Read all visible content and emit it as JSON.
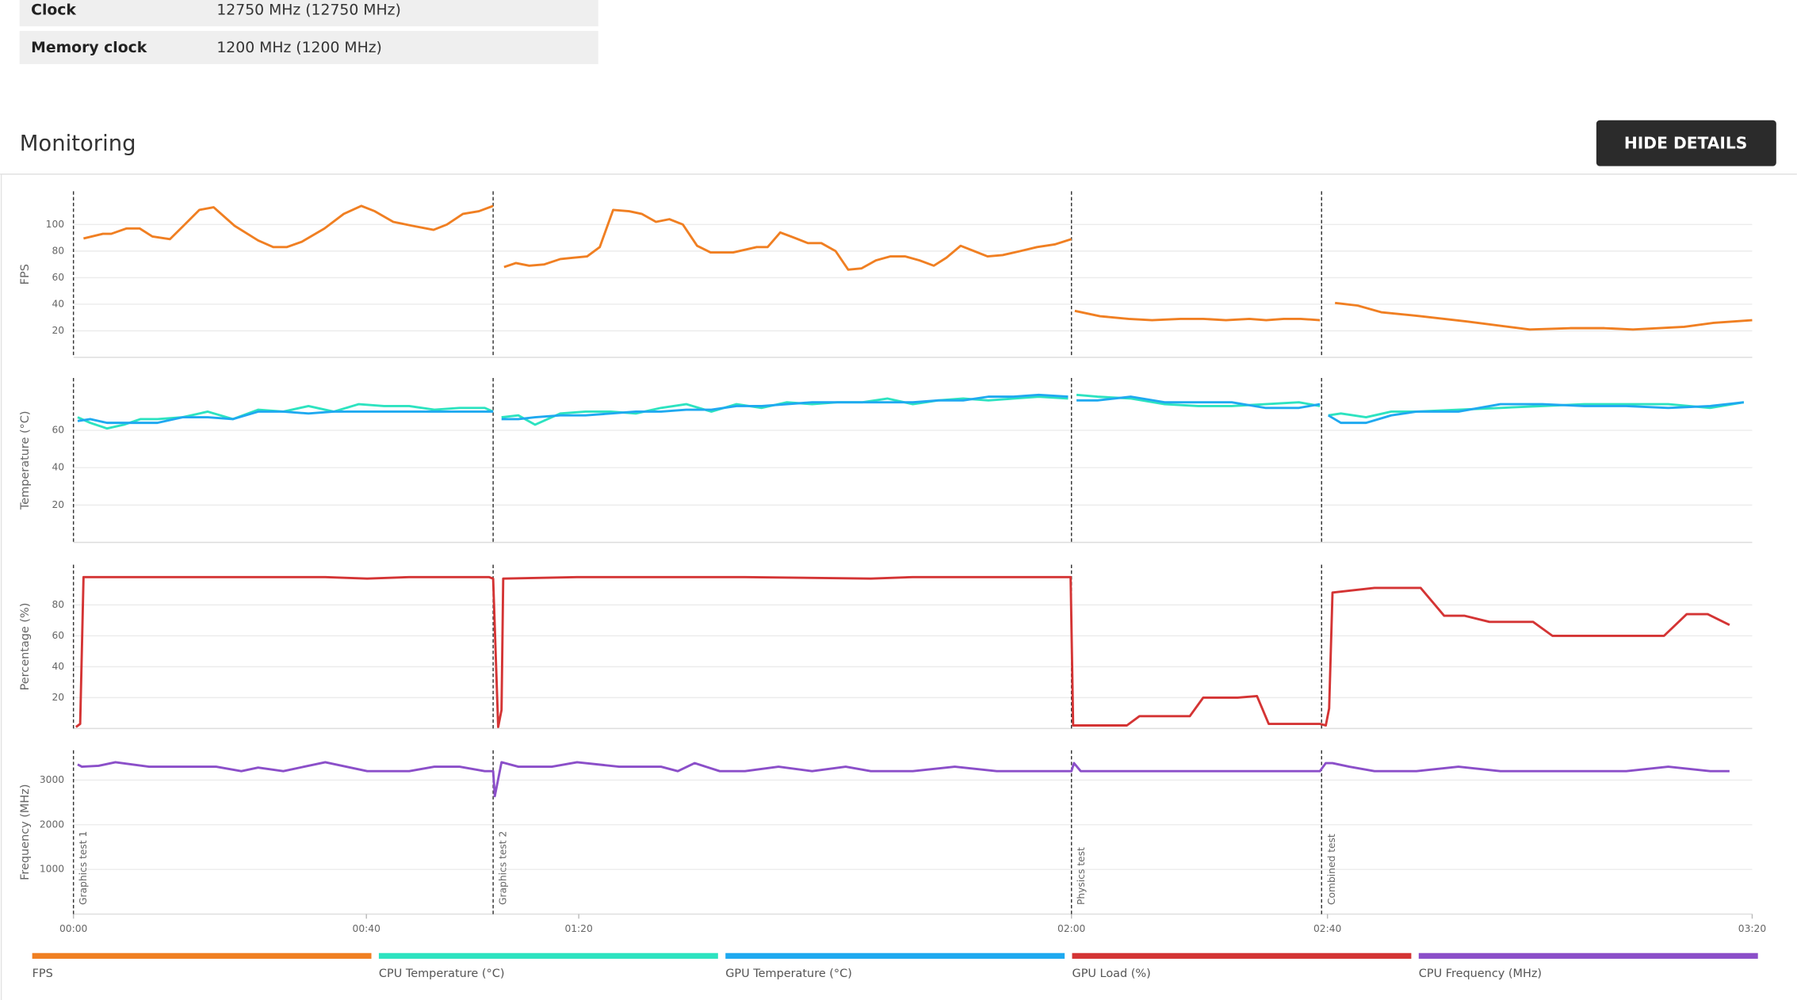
{
  "info": {
    "rows": [
      {
        "label": "Clock",
        "value": "12750 MHz (12750 MHz)"
      },
      {
        "label": "Memory clock",
        "value": "1200 MHz (1200 MHz)"
      }
    ]
  },
  "section_title": "Monitoring",
  "button": "HIDE DETAILS",
  "chart_data": [
    {
      "type": "line",
      "ylabel": "FPS",
      "xlim": [
        0,
        200
      ],
      "ylim": [
        0,
        125
      ],
      "yticks": [
        20,
        40,
        60,
        80,
        100
      ],
      "grid": true,
      "x": [
        1.2,
        3.5,
        4.5,
        6.3,
        7.9,
        9.4,
        11.5,
        13.1,
        15,
        16.7,
        19.2,
        22,
        23.8,
        25.4,
        27.2,
        29.9,
        32.2,
        34.3,
        35.9,
        38.1,
        40.4,
        42.9,
        44.5,
        46.4,
        48.3,
        50,
        50.6,
        51.3,
        52.7,
        54.3,
        56.1,
        58,
        59.5,
        61.2,
        62.7,
        64.3,
        66.2,
        67.7,
        69.4,
        71,
        72.6,
        74.3,
        75.9,
        78.6,
        81.4,
        82.7,
        84.2,
        85.9,
        87.5,
        89.1,
        90.8,
        92.3,
        93.9,
        95.6,
        97.3,
        99.1,
        100.8,
        102.5,
        104,
        105.7,
        107.3,
        108.9,
        110.7,
        112.8,
        114.8,
        116.9,
        118.9,
        119.1,
        119.3,
        122.3,
        125.7,
        128.5,
        131.9,
        134.6,
        137.3,
        140.1,
        142.1,
        144.2,
        146.2,
        148.5,
        149.4,
        150.3,
        153,
        155.8,
        160.5,
        166,
        173.5,
        178.3,
        182.4,
        185.8,
        191.9,
        195.4,
        200
      ],
      "series": [
        {
          "name": "FPS",
          "color": "#f07f22",
          "values": [
            89.5,
            93,
            93,
            97,
            97,
            91,
            89,
            99,
            111,
            113,
            99,
            88,
            83,
            83,
            87,
            97,
            108,
            114,
            110,
            102,
            99,
            96,
            100,
            108,
            110,
            114,
            null,
            68,
            71,
            69,
            70,
            74,
            75,
            76,
            83,
            111,
            110,
            108,
            102,
            104,
            100,
            84,
            79,
            79,
            83,
            83,
            94,
            90,
            86,
            86,
            80,
            66,
            67,
            73,
            76,
            76,
            73,
            69,
            75,
            84,
            80,
            76,
            77,
            80,
            83,
            85,
            89,
            null,
            35,
            31,
            29,
            28,
            29,
            29,
            28,
            29,
            28,
            29,
            29,
            28,
            null,
            41,
            39,
            34,
            31,
            27,
            21,
            22,
            22,
            21,
            23,
            26,
            28
          ]
        }
      ]
    },
    {
      "type": "line",
      "ylabel": "Temperature (°C)",
      "xlim": [
        0,
        200
      ],
      "ylim": [
        0,
        88
      ],
      "yticks": [
        20,
        40,
        60
      ],
      "grid": true,
      "x": [
        0.5,
        2,
        4,
        6,
        8,
        10,
        13,
        16,
        19,
        22,
        25,
        28,
        31,
        34,
        37,
        40,
        43,
        46,
        49,
        50,
        50.5,
        51,
        53,
        55,
        58,
        61,
        64,
        67,
        70,
        73,
        76,
        79,
        82,
        85,
        88,
        91,
        94,
        97,
        100,
        103,
        106,
        109,
        112,
        115,
        118.5,
        119,
        119.5,
        122,
        126,
        130,
        134,
        138,
        142,
        146,
        148.5,
        149,
        149.5,
        151,
        154,
        157,
        160,
        165,
        170,
        175,
        180,
        185,
        190,
        195,
        199
      ],
      "series": [
        {
          "name": "CPU Temperature (°C)",
          "color": "#2de3c0",
          "values": [
            67,
            64,
            61,
            63,
            66,
            66,
            67,
            70,
            66,
            71,
            70,
            73,
            70,
            74,
            73,
            73,
            71,
            72,
            72,
            70,
            null,
            67,
            68,
            63,
            69,
            70,
            70,
            69,
            72,
            74,
            70,
            74,
            72,
            75,
            74,
            75,
            75,
            77,
            74,
            76,
            77,
            76,
            77,
            78,
            77,
            null,
            79,
            78,
            77,
            74,
            73,
            73,
            74,
            75,
            73,
            null,
            68,
            69,
            67,
            70,
            70,
            71,
            72,
            73,
            74,
            74,
            74,
            72,
            75
          ]
        },
        {
          "name": "GPU Temperature (°C)",
          "color": "#1fa9f0",
          "values": [
            65,
            66,
            64,
            64,
            64,
            64,
            67,
            67,
            66,
            70,
            70,
            69,
            70,
            70,
            70,
            70,
            70,
            70,
            70,
            70,
            null,
            66,
            66,
            67,
            68,
            68,
            69,
            70,
            70,
            71,
            71,
            73,
            73,
            74,
            75,
            75,
            75,
            75,
            75,
            76,
            76,
            78,
            78,
            79,
            78,
            null,
            76,
            76,
            78,
            75,
            75,
            75,
            72,
            72,
            74,
            null,
            68,
            64,
            64,
            68,
            70,
            70,
            74,
            74,
            73,
            73,
            72,
            73,
            75
          ]
        }
      ]
    },
    {
      "type": "line",
      "ylabel": "Percentage (%)",
      "xlim": [
        0,
        200
      ],
      "ylim": [
        0,
        106
      ],
      "yticks": [
        20,
        40,
        60,
        80
      ],
      "grid": true,
      "x": [
        0.3,
        0.8,
        1.2,
        10,
        30,
        35,
        40,
        49.5,
        50,
        50.6,
        51,
        51.2,
        60,
        80,
        95,
        100,
        110,
        118.8,
        119.1,
        125.5,
        127,
        133,
        134.6,
        138.7,
        141,
        142.4,
        148.5,
        149.2,
        149.6,
        150,
        155,
        160.5,
        163.3,
        165.7,
        168.7,
        173.9,
        176.2,
        181.7,
        189.5,
        192.2,
        194.7,
        197.3
      ],
      "series": [
        {
          "name": "GPU Load (%)",
          "color": "#d43434",
          "values": [
            1,
            3,
            98,
            98,
            98,
            97,
            98,
            98,
            97,
            1,
            12,
            97,
            98,
            98,
            97,
            98,
            98,
            98,
            2,
            2,
            8,
            8,
            20,
            20,
            21,
            3,
            3,
            2,
            13,
            88,
            91,
            91,
            73,
            73,
            69,
            69,
            60,
            60,
            60,
            74,
            74,
            67
          ]
        }
      ]
    },
    {
      "type": "line",
      "ylabel": "Frequency (MHz)",
      "xlim": [
        0,
        200
      ],
      "ylim": [
        0,
        3667
      ],
      "yticks": [
        1000,
        2000,
        3000
      ],
      "grid": true,
      "xticks": [
        {
          "value": 0,
          "label": "00:00"
        },
        {
          "value": 34.9,
          "label": "00:40"
        },
        {
          "value": 60.2,
          "label": "01:20"
        },
        {
          "value": 118.9,
          "label": "02:00"
        },
        {
          "value": 149.4,
          "label": "02:40"
        },
        {
          "value": 200,
          "label": "03:20"
        }
      ],
      "markers": [
        {
          "x": 0,
          "label": "Graphics test 1"
        },
        {
          "x": 50,
          "label": "Graphics test 2"
        },
        {
          "x": 118.9,
          "label": "Physics test"
        },
        {
          "x": 148.7,
          "label": "Combined test"
        }
      ],
      "x": [
        0.5,
        1,
        3,
        5,
        9,
        13,
        17,
        20,
        22,
        25,
        30,
        35,
        40,
        43,
        46,
        49,
        50,
        50.2,
        51,
        53,
        57,
        60,
        65,
        70,
        72,
        74,
        77,
        80,
        84,
        88,
        92,
        95,
        100,
        105,
        110,
        115,
        118.9,
        119.2,
        120,
        125,
        130,
        140,
        148.5,
        149.2,
        150,
        152,
        155,
        160,
        165,
        170,
        175,
        180,
        185,
        190,
        195,
        197.3
      ],
      "series": [
        {
          "name": "CPU Frequency (MHz)",
          "color": "#8b4fc9",
          "values": [
            3350,
            3300,
            3320,
            3400,
            3300,
            3300,
            3300,
            3200,
            3280,
            3200,
            3400,
            3200,
            3200,
            3300,
            3300,
            3200,
            3200,
            2640,
            3400,
            3300,
            3300,
            3400,
            3300,
            3300,
            3200,
            3380,
            3200,
            3200,
            3300,
            3200,
            3300,
            3200,
            3200,
            3300,
            3200,
            3200,
            3200,
            3380,
            3200,
            3200,
            3200,
            3200,
            3200,
            3380,
            3380,
            3300,
            3200,
            3200,
            3300,
            3200,
            3200,
            3200,
            3200,
            3300,
            3200,
            3200
          ]
        }
      ]
    }
  ]
}
